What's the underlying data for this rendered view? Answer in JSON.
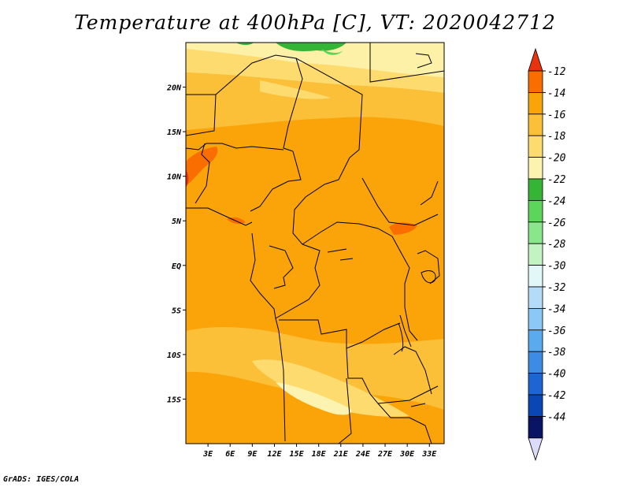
{
  "chart_data": {
    "type": "heatmap",
    "title": "Temperature at 400hPa [C], VT: 2020042712",
    "variable": "Temperature at 400hPa",
    "units": "C",
    "valid_time": "2020042712",
    "x_ticks": [
      "3E",
      "6E",
      "9E",
      "12E",
      "15E",
      "18E",
      "21E",
      "24E",
      "27E",
      "30E",
      "33E"
    ],
    "x_tick_values": [
      3,
      6,
      9,
      12,
      15,
      18,
      21,
      24,
      27,
      30,
      33
    ],
    "y_ticks": [
      "20N",
      "15N",
      "10N",
      "5N",
      "EQ",
      "5S",
      "10S",
      "15S"
    ],
    "y_tick_values": [
      20,
      15,
      10,
      5,
      0,
      -5,
      -10,
      -15
    ],
    "xlim": [
      0,
      35
    ],
    "ylim": [
      -20,
      25
    ],
    "colorbar_levels": [
      "-12",
      "-14",
      "-16",
      "-18",
      "-20",
      "-22",
      "-24",
      "-26",
      "-28",
      "-30",
      "-32",
      "-34",
      "-36",
      "-38",
      "-40",
      "-42",
      "-44"
    ],
    "colorbar_colors": [
      "#e8330e",
      "#fa6e00",
      "#fba40a",
      "#fbbf38",
      "#fddb6e",
      "#fdf3b1",
      "#35b535",
      "#5bd65b",
      "#8ae68a",
      "#c3f2c3",
      "#e2f8f8",
      "#b4dcf8",
      "#8cc8f5",
      "#5aaaf0",
      "#3c8ce6",
      "#1e64d2",
      "#0a46b4",
      "#0a1464",
      "#dcdcfa"
    ],
    "field_summary": [
      {
        "band": "north of 20N",
        "value_range": "-20 to -22"
      },
      {
        "band": "15N-20N",
        "value_range": "-18 to -20"
      },
      {
        "band": "5N-15N",
        "value_range": "-14 to -16"
      },
      {
        "band": "5S-5N",
        "value_range": "-14 to -16"
      },
      {
        "band": "10S-15S",
        "value_range": "-16 to -20"
      },
      {
        "band": "south of 15S",
        "value_range": "-14 to -16"
      }
    ]
  },
  "credit": "GrADS: IGES/COLA"
}
